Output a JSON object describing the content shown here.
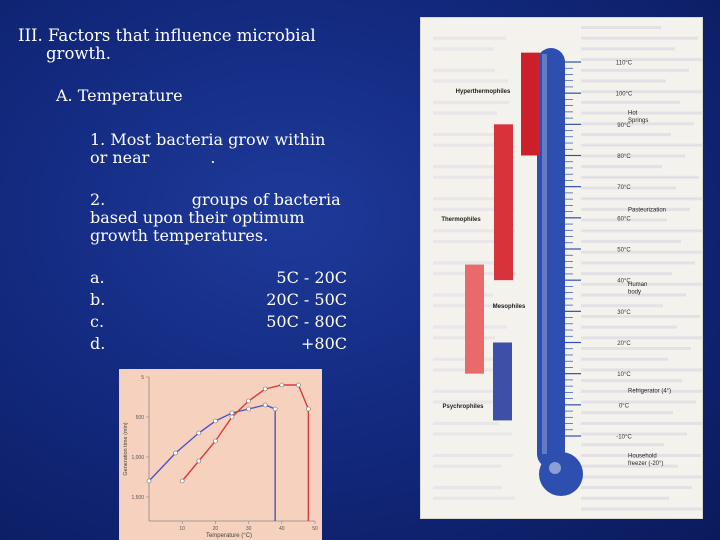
{
  "slide": {
    "title_line1": "III. Factors that influence microbial",
    "title_line2": "growth.",
    "section": "A. Temperature",
    "point1_line1": "1. Most bacteria grow within",
    "point1_line2": "or near            .",
    "point2_line1": "2.                 groups of bacteria",
    "point2_line2": "based upon their optimum",
    "point2_line3": "growth temperatures.",
    "list": [
      {
        "label": "a.",
        "range": "5C - 20C"
      },
      {
        "label": "b.",
        "range": "20C - 50C"
      },
      {
        "label": "c.",
        "range": "50C - 80C"
      },
      {
        "label": "d.",
        "range": "+80C"
      }
    ]
  },
  "thermometer": {
    "scale_labels": [
      "110°C",
      "100°C",
      "90°C",
      "80°C",
      "70°C",
      "60°C",
      "50°C",
      "40°C",
      "30°C",
      "20°C",
      "10°C",
      "0°C",
      "-10°C"
    ],
    "groups": [
      {
        "name": "Hyperthermophiles",
        "color": "#cc1f2a",
        "from_c": 80,
        "to_c": 113
      },
      {
        "name": "Thermophiles",
        "color": "#d8323b",
        "from_c": 40,
        "to_c": 90
      },
      {
        "name": "Mesophiles",
        "color": "#e86a6a",
        "from_c": 10,
        "to_c": 45
      },
      {
        "name": "Psychrophiles",
        "color": "#3d4fa8",
        "from_c": -5,
        "to_c": 20
      }
    ],
    "annotations": [
      {
        "text": "Hot Springs",
        "at_c": 92
      },
      {
        "text": "Pasteurization",
        "at_c": 62
      },
      {
        "text": "Human body",
        "at_c": 37
      },
      {
        "text": "Refrigerator (4°)",
        "at_c": 4
      },
      {
        "text": "Household freezer (-20°)",
        "at_c": -18
      }
    ],
    "tube_color": "#2f4fb0"
  },
  "chart_data": {
    "type": "line",
    "xlabel": "Temperature (°C)",
    "ylabel": "Generation time (min)",
    "x_ticks": [
      "10",
      "20",
      "30",
      "40",
      "50"
    ],
    "y_ticks": [
      "5",
      "500",
      "1,000",
      "1,500"
    ],
    "xlim": [
      0,
      50
    ],
    "ylim": [
      1800,
      0
    ],
    "series": [
      {
        "color": "#4a55c8",
        "x": [
          0,
          8,
          15,
          20,
          25,
          30,
          35,
          38,
          38
        ],
        "y": [
          1300,
          950,
          700,
          550,
          450,
          400,
          350,
          400,
          1800
        ]
      },
      {
        "color": "#d83a3a",
        "x": [
          10,
          15,
          20,
          25,
          30,
          35,
          40,
          45,
          48,
          48
        ],
        "y": [
          1300,
          1050,
          800,
          500,
          300,
          150,
          100,
          100,
          400,
          1800
        ]
      }
    ]
  }
}
